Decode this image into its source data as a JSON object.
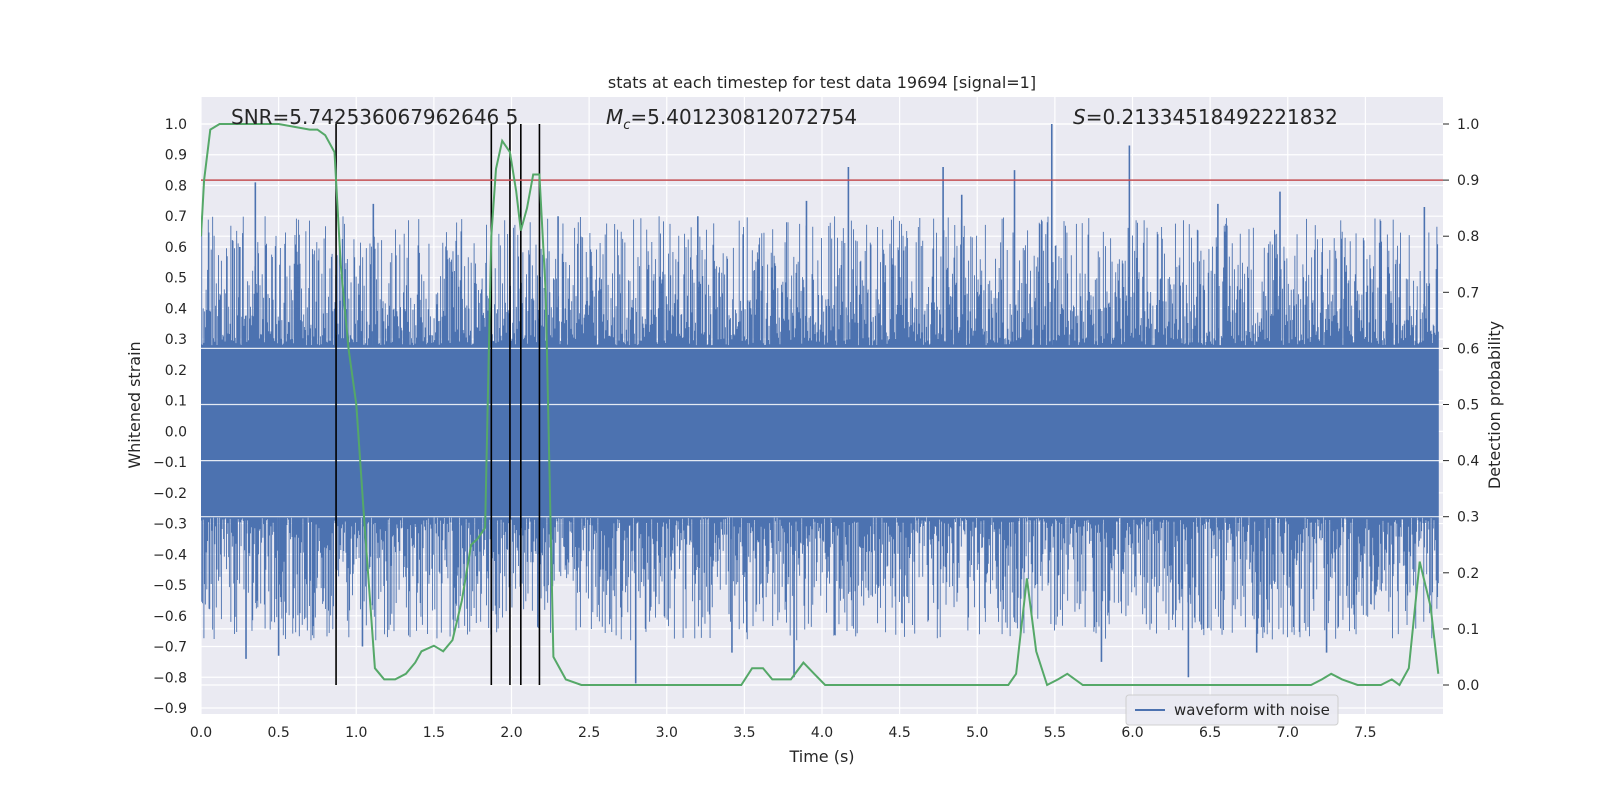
{
  "chart_data": {
    "type": "line",
    "title": "stats at each timestep for test data 19694 [signal=1]",
    "xlabel": "Time (s)",
    "ylabel": "Whitened strain",
    "y2label": "Detection probability",
    "xlim": [
      0.0,
      8.0
    ],
    "ylim": [
      -0.9,
      1.0
    ],
    "y2lim": [
      0.0,
      1.0
    ],
    "grid": true,
    "xticks": [
      "0.0",
      "0.5",
      "1.0",
      "1.5",
      "2.0",
      "2.5",
      "3.0",
      "3.5",
      "4.0",
      "4.5",
      "5.0",
      "5.5",
      "6.0",
      "6.5",
      "7.0",
      "7.5"
    ],
    "yticks": [
      "1.0",
      "0.9",
      "0.8",
      "0.7",
      "0.6",
      "0.5",
      "0.4",
      "0.3",
      "0.2",
      "0.1",
      "0.0",
      "−0.1",
      "−0.2",
      "−0.3",
      "−0.4",
      "−0.5",
      "−0.6",
      "−0.7",
      "−0.8",
      "−0.9"
    ],
    "y2ticks": [
      "1.0",
      "0.9",
      "0.8",
      "0.7",
      "0.6",
      "0.5",
      "0.4",
      "0.3",
      "0.2",
      "0.1",
      "0.0"
    ],
    "annotations": {
      "snr": "SNR=5.742536067962646 5",
      "mc_symbol": "M",
      "mc_sub": "c",
      "mc_value": "=5.401230812072754",
      "s_symbol": "S",
      "s_value": "=0.21334518492221832"
    },
    "legend": {
      "label": "waveform with noise",
      "position": "lower-right"
    },
    "threshold": {
      "value": 0.9,
      "axis": "right",
      "color": "#c44e52"
    },
    "detection_lines_x": [
      0.87,
      1.87,
      1.99,
      2.06,
      2.18
    ],
    "noise_envelope": {
      "name": "waveform with noise",
      "color": "#4c72b0",
      "spikes_upper": [
        [
          0.35,
          0.81
        ],
        [
          4.17,
          0.86
        ],
        [
          4.78,
          0.86
        ],
        [
          5.24,
          0.85
        ],
        [
          5.48,
          1.0
        ],
        [
          5.98,
          0.93
        ],
        [
          0.25,
          0.6
        ],
        [
          1.11,
          0.74
        ],
        [
          2.3,
          0.7
        ],
        [
          3.2,
          0.7
        ],
        [
          3.9,
          0.75
        ],
        [
          6.95,
          0.78
        ],
        [
          7.88,
          0.73
        ],
        [
          4.9,
          0.77
        ],
        [
          6.55,
          0.74
        ]
      ],
      "spikes_lower": [
        [
          0.29,
          -0.74
        ],
        [
          0.5,
          -0.73
        ],
        [
          1.04,
          -0.7
        ],
        [
          2.8,
          -0.82
        ],
        [
          3.42,
          -0.72
        ],
        [
          3.82,
          -0.8
        ],
        [
          5.8,
          -0.75
        ],
        [
          6.36,
          -0.8
        ],
        [
          7.25,
          -0.72
        ],
        [
          6.8,
          -0.72
        ]
      ]
    },
    "series": [
      {
        "name": "detection probability",
        "axis": "right",
        "color": "#55a868",
        "x": [
          0.0,
          0.02,
          0.06,
          0.12,
          0.25,
          0.5,
          0.7,
          0.75,
          0.8,
          0.86,
          0.9,
          0.95,
          1.0,
          1.05,
          1.12,
          1.18,
          1.25,
          1.32,
          1.38,
          1.42,
          1.5,
          1.56,
          1.62,
          1.68,
          1.74,
          1.78,
          1.83,
          1.87,
          1.9,
          1.94,
          1.99,
          2.03,
          2.06,
          2.1,
          2.14,
          2.18,
          2.22,
          2.27,
          2.35,
          2.45,
          2.55,
          2.7,
          3.0,
          3.3,
          3.48,
          3.55,
          3.62,
          3.68,
          3.74,
          3.8,
          3.88,
          3.95,
          4.02,
          4.2,
          4.5,
          4.8,
          5.15,
          5.2,
          5.25,
          5.32,
          5.38,
          5.45,
          5.52,
          5.58,
          5.68,
          6.0,
          6.5,
          7.0,
          7.15,
          7.22,
          7.28,
          7.35,
          7.45,
          7.6,
          7.67,
          7.72,
          7.78,
          7.85,
          7.92,
          7.97
        ],
        "values": [
          0.8,
          0.9,
          0.99,
          1.0,
          1.0,
          1.0,
          0.99,
          0.99,
          0.98,
          0.95,
          0.75,
          0.6,
          0.5,
          0.3,
          0.03,
          0.01,
          0.01,
          0.02,
          0.04,
          0.06,
          0.07,
          0.06,
          0.08,
          0.15,
          0.25,
          0.26,
          0.28,
          0.8,
          0.92,
          0.97,
          0.95,
          0.88,
          0.81,
          0.85,
          0.91,
          0.91,
          0.7,
          0.05,
          0.01,
          0.0,
          0.0,
          0.0,
          0.0,
          0.0,
          0.0,
          0.03,
          0.03,
          0.01,
          0.01,
          0.01,
          0.04,
          0.02,
          0.0,
          0.0,
          0.0,
          0.0,
          0.0,
          0.0,
          0.02,
          0.19,
          0.06,
          0.0,
          0.01,
          0.02,
          0.0,
          0.0,
          0.0,
          0.0,
          0.0,
          0.01,
          0.02,
          0.01,
          0.0,
          0.0,
          0.01,
          0.0,
          0.03,
          0.22,
          0.14,
          0.02
        ]
      }
    ]
  }
}
